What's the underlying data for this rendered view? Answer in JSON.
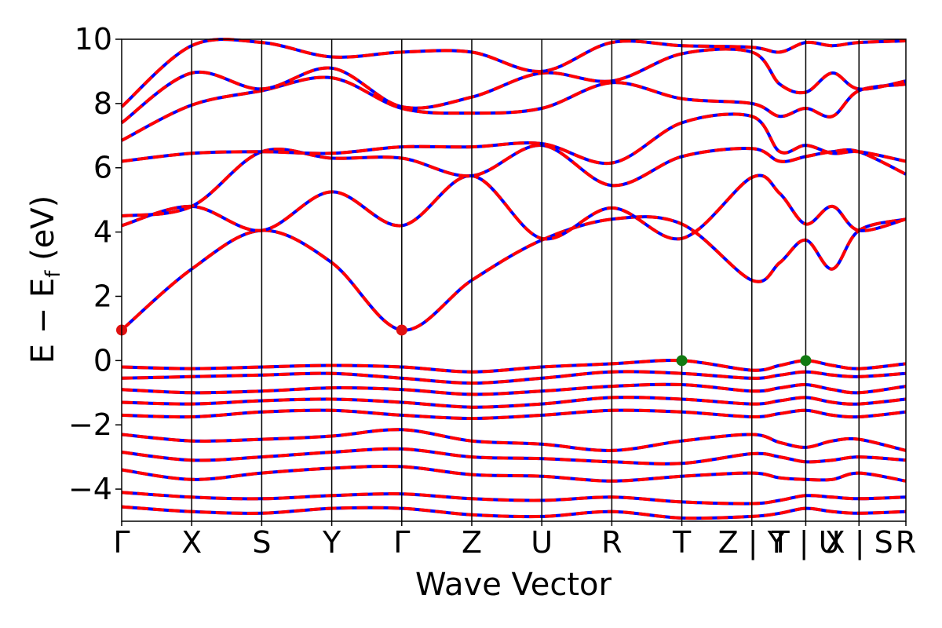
{
  "chart_data": {
    "type": "line",
    "title": "",
    "xlabel": "Wave Vector",
    "ylabel": "E − E",
    "ylabel_subscript": "f",
    "ylabel_unit": " (eV)",
    "ylim": [
      -5,
      10
    ],
    "yticks": [
      -4,
      -2,
      0,
      2,
      4,
      6,
      8,
      10
    ],
    "ytick_labels": [
      "−4",
      "−2",
      "0",
      "2",
      "4",
      "6",
      "8",
      "10"
    ],
    "kpath_labels": [
      "Γ",
      "X",
      "S",
      "Y",
      "Γ",
      "Z",
      "U",
      "R",
      "T",
      "Z | Y",
      "T | U",
      "X | S",
      "R"
    ],
    "kpath_positions": [
      0,
      1,
      2,
      3,
      4,
      5,
      6,
      7,
      8,
      9,
      9.77,
      10.53,
      11.2
    ],
    "grid": false,
    "legend": "none",
    "colors": {
      "spin_up": "#0000ff",
      "spin_down": "#ff0000",
      "cbm_marker": "#e01010",
      "vbm_marker": "#117a11"
    },
    "band_style": "red and blue dashed overlays (spin-degenerate)",
    "cbm_points": [
      {
        "x": 0,
        "y": 0.95
      },
      {
        "x": 4,
        "y": 0.95
      }
    ],
    "vbm_points": [
      {
        "x": 8,
        "y": 0.0
      },
      {
        "x": 9.77,
        "y": 0.0
      }
    ],
    "bands": [
      {
        "name": "cb1",
        "y": [
          0.95,
          2.85,
          4.05,
          3.05,
          0.95,
          2.5,
          3.75,
          4.4,
          4.25,
          2.5,
          3.05,
          3.75,
          2.85,
          4.05,
          4.4
        ]
      },
      {
        "name": "cb2",
        "y": [
          4.2,
          4.8,
          4.05,
          5.25,
          4.2,
          5.75,
          3.8,
          4.75,
          3.8,
          5.7,
          5.2,
          4.25,
          4.8,
          4.05,
          4.4
        ]
      },
      {
        "name": "cb3",
        "y": [
          4.5,
          4.8,
          6.5,
          6.3,
          6.3,
          5.75,
          6.7,
          5.45,
          6.35,
          6.6,
          6.2,
          6.35,
          6.5,
          6.5,
          5.8
        ]
      },
      {
        "name": "cb4",
        "y": [
          6.2,
          6.45,
          6.5,
          6.45,
          6.65,
          6.65,
          6.75,
          6.15,
          7.4,
          7.6,
          6.5,
          6.7,
          6.45,
          6.5,
          6.2
        ]
      },
      {
        "name": "cb5",
        "y": [
          6.85,
          7.95,
          8.4,
          8.8,
          7.85,
          7.7,
          7.85,
          8.65,
          8.15,
          8.0,
          7.6,
          7.85,
          7.6,
          8.4,
          8.6
        ]
      },
      {
        "name": "cb6",
        "y": [
          7.4,
          8.95,
          8.45,
          9.1,
          7.9,
          8.2,
          8.95,
          8.7,
          9.55,
          9.6,
          8.6,
          8.35,
          8.95,
          8.45,
          8.7
        ]
      },
      {
        "name": "cb7",
        "y": [
          7.9,
          9.8,
          9.9,
          9.45,
          9.6,
          9.6,
          9.0,
          9.9,
          9.8,
          9.75,
          9.6,
          9.9,
          9.8,
          9.9,
          9.95
        ]
      },
      {
        "name": "vb1",
        "y": [
          -0.2,
          -0.25,
          -0.2,
          -0.15,
          -0.2,
          -0.35,
          -0.2,
          -0.1,
          0.0,
          -0.3,
          -0.15,
          0.0,
          -0.15,
          -0.25,
          -0.1
        ]
      },
      {
        "name": "vb2",
        "y": [
          -0.55,
          -0.5,
          -0.45,
          -0.4,
          -0.55,
          -0.7,
          -0.55,
          -0.35,
          -0.4,
          -0.55,
          -0.45,
          -0.35,
          -0.45,
          -0.5,
          -0.4
        ]
      },
      {
        "name": "vb3",
        "y": [
          -0.9,
          -1.0,
          -0.95,
          -0.85,
          -0.9,
          -1.05,
          -0.95,
          -0.8,
          -0.75,
          -0.95,
          -0.85,
          -0.75,
          -0.9,
          -1.0,
          -0.8
        ]
      },
      {
        "name": "vb4",
        "y": [
          -1.3,
          -1.35,
          -1.25,
          -1.2,
          -1.3,
          -1.45,
          -1.35,
          -1.15,
          -1.2,
          -1.35,
          -1.25,
          -1.15,
          -1.3,
          -1.35,
          -1.2
        ]
      },
      {
        "name": "vb5",
        "y": [
          -1.7,
          -1.75,
          -1.6,
          -1.55,
          -1.7,
          -1.8,
          -1.7,
          -1.55,
          -1.6,
          -1.75,
          -1.65,
          -1.55,
          -1.7,
          -1.75,
          -1.6
        ]
      },
      {
        "name": "vb6",
        "y": [
          -2.3,
          -2.5,
          -2.45,
          -2.35,
          -2.15,
          -2.5,
          -2.6,
          -2.8,
          -2.5,
          -2.3,
          -2.55,
          -2.7,
          -2.5,
          -2.45,
          -2.8
        ]
      },
      {
        "name": "vb7",
        "y": [
          -2.85,
          -3.1,
          -3.0,
          -2.85,
          -2.75,
          -3.0,
          -3.05,
          -3.15,
          -3.2,
          -2.9,
          -3.0,
          -3.15,
          -3.1,
          -3.0,
          -3.1
        ]
      },
      {
        "name": "vb8",
        "y": [
          -3.4,
          -3.7,
          -3.5,
          -3.35,
          -3.3,
          -3.55,
          -3.6,
          -3.75,
          -3.6,
          -3.5,
          -3.65,
          -3.7,
          -3.7,
          -3.5,
          -3.75
        ]
      },
      {
        "name": "vb9",
        "y": [
          -4.1,
          -4.25,
          -4.3,
          -4.2,
          -4.15,
          -4.3,
          -4.35,
          -4.25,
          -4.4,
          -4.45,
          -4.35,
          -4.2,
          -4.25,
          -4.3,
          -4.25
        ]
      },
      {
        "name": "vb10",
        "y": [
          -4.55,
          -4.7,
          -4.75,
          -4.6,
          -4.6,
          -4.8,
          -4.85,
          -4.7,
          -4.9,
          -4.85,
          -4.75,
          -4.6,
          -4.7,
          -4.75,
          -4.7
        ]
      }
    ]
  }
}
